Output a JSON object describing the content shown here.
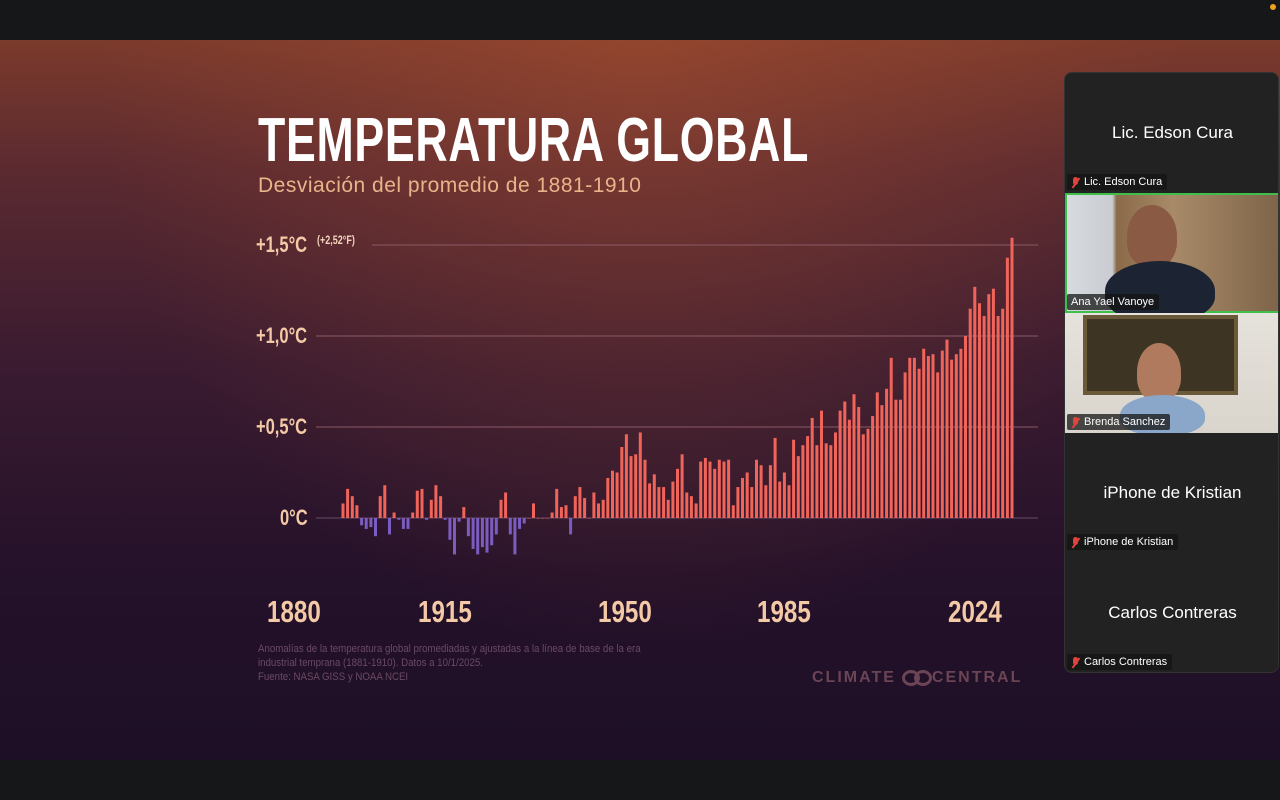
{
  "colors": {
    "positive_bar": "#f0645a",
    "negative_bar": "#7b5cc0",
    "active_speaker": "#3fbf4a"
  },
  "slide": {
    "title": "TEMPERATURA GLOBAL",
    "subtitle": "Desviación del promedio de 1881-1910",
    "footnote_lines": [
      "Anomalías de la temperatura global promediadas y ajustadas a la línea de base de la era",
      "industrial temprana (1881-1910). Datos a 10/1/2025.",
      "Fuente: NASA GISS y NOAA NCEI"
    ],
    "logo": "CLIMATE CENTRAL"
  },
  "chart_data": {
    "type": "bar",
    "title": "TEMPERATURA GLOBAL",
    "subtitle": "Desviación del promedio de 1881-1910",
    "xlabel": "",
    "ylabel": "°C",
    "y_ticks": [
      "0°C",
      "+0,5°C",
      "+1,0°C",
      "+1,5°C"
    ],
    "y_tick_values": [
      0,
      0.5,
      1.0,
      1.5
    ],
    "y_annotation": "(+2,52°F)",
    "x_tick_labels": [
      "1880",
      "1915",
      "1950",
      "1985",
      "2024"
    ],
    "ylim": [
      -0.25,
      1.55
    ],
    "grid": true,
    "x_start": 1880,
    "x_end": 2024,
    "values": [
      0.08,
      0.16,
      0.12,
      0.07,
      -0.04,
      -0.06,
      -0.05,
      -0.1,
      0.12,
      0.18,
      -0.09,
      0.03,
      -0.01,
      -0.06,
      -0.06,
      0.03,
      0.15,
      0.16,
      -0.01,
      0.1,
      0.18,
      0.12,
      -0.01,
      -0.12,
      -0.2,
      -0.02,
      0.06,
      -0.1,
      -0.17,
      -0.2,
      -0.16,
      -0.19,
      -0.15,
      -0.09,
      0.1,
      0.14,
      -0.09,
      -0.2,
      -0.06,
      -0.03,
      0.0,
      0.08,
      0.0,
      0.0,
      0.0,
      0.03,
      0.16,
      0.06,
      0.07,
      -0.09,
      0.12,
      0.17,
      0.11,
      0.0,
      0.14,
      0.08,
      0.1,
      0.22,
      0.26,
      0.25,
      0.39,
      0.46,
      0.34,
      0.35,
      0.47,
      0.32,
      0.19,
      0.24,
      0.17,
      0.17,
      0.1,
      0.2,
      0.27,
      0.35,
      0.14,
      0.12,
      0.08,
      0.31,
      0.33,
      0.31,
      0.27,
      0.32,
      0.31,
      0.32,
      0.07,
      0.17,
      0.22,
      0.25,
      0.17,
      0.32,
      0.29,
      0.18,
      0.29,
      0.44,
      0.2,
      0.25,
      0.18,
      0.43,
      0.34,
      0.4,
      0.45,
      0.55,
      0.4,
      0.59,
      0.41,
      0.4,
      0.47,
      0.59,
      0.64,
      0.54,
      0.68,
      0.61,
      0.46,
      0.49,
      0.56,
      0.69,
      0.62,
      0.71,
      0.88,
      0.65,
      0.65,
      0.8,
      0.88,
      0.88,
      0.82,
      0.93,
      0.89,
      0.9,
      0.8,
      0.92,
      0.98,
      0.87,
      0.9,
      0.93,
      1.0,
      1.15,
      1.27,
      1.18,
      1.11,
      1.23,
      1.26,
      1.11,
      1.15,
      1.43,
      1.54
    ]
  },
  "participants": [
    {
      "name": "Lic. Edson Cura",
      "video": false,
      "muted": true
    },
    {
      "name": "Ana Yael Vanoye",
      "video": true,
      "muted": false,
      "active": true
    },
    {
      "name": "Brenda Sanchez",
      "video": true,
      "muted": true
    },
    {
      "name": "iPhone de Kristian",
      "video": false,
      "muted": true
    },
    {
      "name": "Carlos Contreras",
      "video": false,
      "muted": true
    }
  ]
}
